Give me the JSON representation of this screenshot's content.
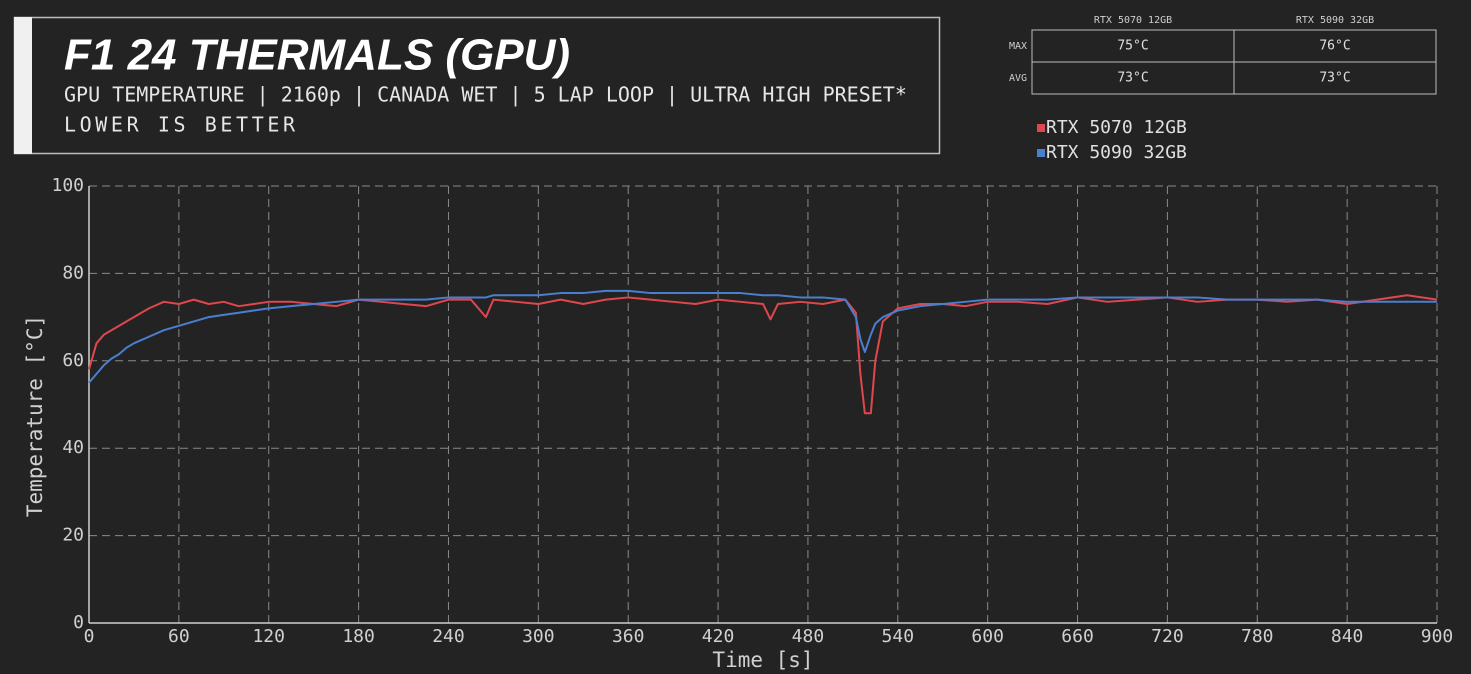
{
  "chart_data": {
    "type": "line",
    "title": "F1 24 THERMALS (GPU)",
    "subtitle": [
      "GPU TEMPERATURE | 2160p | CANADA WET | 5 LAP LOOP | ULTRA HIGH PRESET*",
      "LOWER IS BETTER"
    ],
    "x_label": "Time [s]",
    "y_label": "Temperature [°C]",
    "xlim": [
      0,
      900
    ],
    "ylim": [
      0,
      100
    ],
    "xticks": [
      0,
      60,
      120,
      180,
      240,
      300,
      360,
      420,
      480,
      540,
      600,
      660,
      720,
      780,
      840,
      900
    ],
    "yticks": [
      0,
      20,
      40,
      60,
      80,
      100
    ],
    "grid": true,
    "legend": "top-right",
    "x": [
      0,
      5,
      10,
      15,
      20,
      25,
      30,
      40,
      50,
      60,
      70,
      80,
      90,
      100,
      110,
      120,
      135,
      150,
      165,
      180,
      195,
      210,
      225,
      240,
      255,
      265,
      270,
      285,
      300,
      315,
      330,
      345,
      360,
      375,
      390,
      405,
      420,
      435,
      450,
      455,
      460,
      475,
      490,
      505,
      512,
      515,
      518,
      522,
      525,
      530,
      540,
      555,
      570,
      585,
      600,
      620,
      640,
      660,
      680,
      700,
      720,
      740,
      760,
      780,
      800,
      820,
      840,
      860,
      880,
      900
    ],
    "series": [
      {
        "name": "RTX 5070 12GB",
        "color": "#e0474c",
        "values": [
          58,
          64,
          66,
          67,
          68,
          69,
          70,
          72,
          73.5,
          73,
          74,
          73,
          73.5,
          72.5,
          73,
          73.5,
          73.5,
          73,
          72.5,
          74,
          73.5,
          73,
          72.5,
          74,
          74,
          70,
          74,
          73.5,
          73,
          74,
          73,
          74,
          74.5,
          74,
          73.5,
          73,
          74,
          73.5,
          73,
          69.5,
          73,
          73.5,
          73,
          74,
          71,
          57,
          48,
          48,
          60,
          69,
          72,
          73,
          73,
          72.5,
          73.5,
          73.5,
          73,
          74.5,
          73.5,
          74,
          74.5,
          73.5,
          74,
          74,
          73.5,
          74,
          73,
          74,
          75,
          74
        ]
      },
      {
        "name": "RTX 5090 32GB",
        "color": "#4a7fd0",
        "values": [
          55,
          57,
          59,
          60.5,
          61.5,
          63,
          64,
          65.5,
          67,
          68,
          69,
          70,
          70.5,
          71,
          71.5,
          72,
          72.5,
          73,
          73.5,
          74,
          74,
          74,
          74,
          74.5,
          74.5,
          74.5,
          75,
          75,
          75,
          75.5,
          75.5,
          76,
          76,
          75.5,
          75.5,
          75.5,
          75.5,
          75.5,
          75,
          75,
          75,
          74.5,
          74.5,
          74,
          70,
          65,
          62,
          66,
          68.5,
          70,
          71.5,
          72.5,
          73,
          73.5,
          74,
          74,
          74,
          74.5,
          74.5,
          74.5,
          74.5,
          74.5,
          74,
          74,
          74,
          74,
          73.5,
          73.5,
          73.5,
          73.5
        ]
      }
    ],
    "summary_table": {
      "columns": [
        "RTX 5070 12GB",
        "RTX 5090 32GB"
      ],
      "rows": [
        {
          "label": "MAX",
          "cells": [
            "75°C",
            "76°C"
          ]
        },
        {
          "label": "AVG",
          "cells": [
            "73°C",
            "73°C"
          ]
        }
      ]
    }
  }
}
